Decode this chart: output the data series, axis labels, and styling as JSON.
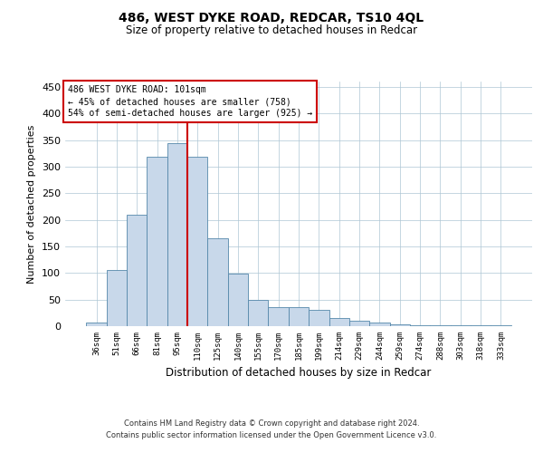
{
  "title1": "486, WEST DYKE ROAD, REDCAR, TS10 4QL",
  "title2": "Size of property relative to detached houses in Redcar",
  "xlabel": "Distribution of detached houses by size in Redcar",
  "ylabel": "Number of detached properties",
  "categories": [
    "36sqm",
    "51sqm",
    "66sqm",
    "81sqm",
    "95sqm",
    "110sqm",
    "125sqm",
    "140sqm",
    "155sqm",
    "170sqm",
    "185sqm",
    "199sqm",
    "214sqm",
    "229sqm",
    "244sqm",
    "259sqm",
    "274sqm",
    "288sqm",
    "303sqm",
    "318sqm",
    "333sqm"
  ],
  "values": [
    6,
    106,
    210,
    318,
    344,
    318,
    165,
    99,
    50,
    36,
    36,
    30,
    16,
    10,
    6,
    4,
    2,
    1,
    1,
    1,
    1
  ],
  "bar_color": "#c8d8ea",
  "bar_edge_color": "#5588aa",
  "vline_x": 4.5,
  "vline_color": "#cc0000",
  "annotation_line1": "486 WEST DYKE ROAD: 101sqm",
  "annotation_line2": "← 45% of detached houses are smaller (758)",
  "annotation_line3": "54% of semi-detached houses are larger (925) →",
  "annotation_box_color": "#ffffff",
  "annotation_box_edge": "#cc0000",
  "ylim": [
    0,
    460
  ],
  "yticks": [
    0,
    50,
    100,
    150,
    200,
    250,
    300,
    350,
    400,
    450
  ],
  "footer1": "Contains HM Land Registry data © Crown copyright and database right 2024.",
  "footer2": "Contains public sector information licensed under the Open Government Licence v3.0.",
  "bg_color": "#ffffff",
  "grid_color": "#aec6d4"
}
